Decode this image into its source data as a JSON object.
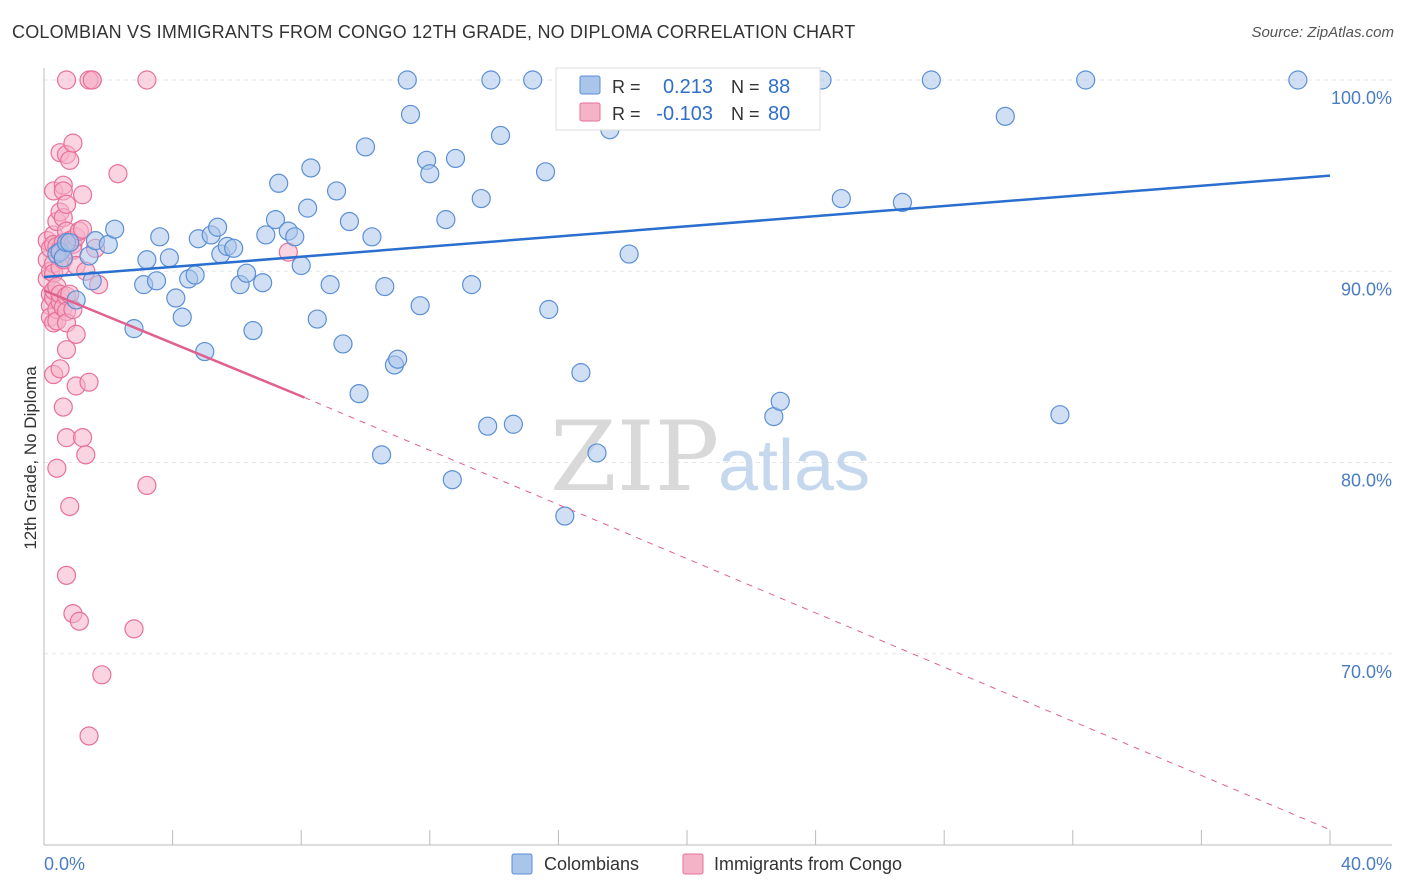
{
  "header": {
    "title": "COLOMBIAN VS IMMIGRANTS FROM CONGO 12TH GRADE, NO DIPLOMA CORRELATION CHART",
    "source": "Source: ZipAtlas.com"
  },
  "watermark": {
    "zip": "ZIP",
    "atlas": "atlas"
  },
  "legend": {
    "r_label": "R =",
    "n_label": "N =",
    "entries": [
      {
        "r": "0.213",
        "n": "88"
      },
      {
        "r": "-0.103",
        "n": "80"
      }
    ]
  },
  "colors": {
    "blue_fill": "#a9c5ea",
    "blue_stroke": "#5b8fd6",
    "blue_line": "#2a6fcf",
    "pink_fill": "#f5b3c8",
    "pink_stroke": "#e8709a",
    "pink_line": "#e0608e"
  },
  "chart_data": {
    "type": "scatter",
    "title": "COLOMBIAN VS IMMIGRANTS FROM CONGO 12TH GRADE, NO DIPLOMA CORRELATION CHART",
    "xlabel": "",
    "ylabel": "12th Grade, No Diploma",
    "xlim": [
      0,
      40
    ],
    "ylim": [
      60,
      101.5
    ],
    "x_tick_labels": [
      "0.0%",
      "40.0%"
    ],
    "y_ticks": [
      100,
      90,
      80,
      70
    ],
    "y_tick_labels": [
      "100.0%",
      "90.0%",
      "80.0%",
      "70.0%"
    ],
    "grid": true,
    "legend_position": "top-center",
    "series": [
      {
        "name": "Colombians",
        "trend": {
          "x": [
            0,
            40
          ],
          "y": [
            89.7,
            95.0
          ]
        },
        "points": [
          [
            0.4,
            90.9
          ],
          [
            0.5,
            91.0
          ],
          [
            0.6,
            90.7
          ],
          [
            0.7,
            91.5
          ],
          [
            0.8,
            91.5
          ],
          [
            1.0,
            88.5
          ],
          [
            1.4,
            90.8
          ],
          [
            1.5,
            89.5
          ],
          [
            1.6,
            91.6
          ],
          [
            2.0,
            91.4
          ],
          [
            2.2,
            92.2
          ],
          [
            2.8,
            87.0
          ],
          [
            3.1,
            89.3
          ],
          [
            3.2,
            90.6
          ],
          [
            3.5,
            89.5
          ],
          [
            3.6,
            91.8
          ],
          [
            3.9,
            90.7
          ],
          [
            4.1,
            88.6
          ],
          [
            4.3,
            87.6
          ],
          [
            4.5,
            89.6
          ],
          [
            4.7,
            89.8
          ],
          [
            4.8,
            91.7
          ],
          [
            5.0,
            85.8
          ],
          [
            5.2,
            91.9
          ],
          [
            5.4,
            92.3
          ],
          [
            5.5,
            90.9
          ],
          [
            5.7,
            91.3
          ],
          [
            5.9,
            91.2
          ],
          [
            6.1,
            89.3
          ],
          [
            6.3,
            89.9
          ],
          [
            6.5,
            86.9
          ],
          [
            6.8,
            89.4
          ],
          [
            6.9,
            91.9
          ],
          [
            7.2,
            92.7
          ],
          [
            7.3,
            94.6
          ],
          [
            7.6,
            92.1
          ],
          [
            7.8,
            91.8
          ],
          [
            8.0,
            90.3
          ],
          [
            8.2,
            93.3
          ],
          [
            8.3,
            95.4
          ],
          [
            8.5,
            87.5
          ],
          [
            8.9,
            89.3
          ],
          [
            9.1,
            94.2
          ],
          [
            9.3,
            86.2
          ],
          [
            9.5,
            92.6
          ],
          [
            9.8,
            83.6
          ],
          [
            10.0,
            96.5
          ],
          [
            10.2,
            91.8
          ],
          [
            10.5,
            80.4
          ],
          [
            10.6,
            89.2
          ],
          [
            10.9,
            85.1
          ],
          [
            11.0,
            85.4
          ],
          [
            11.3,
            100
          ],
          [
            11.4,
            98.2
          ],
          [
            11.7,
            88.2
          ],
          [
            11.9,
            95.8
          ],
          [
            12.0,
            95.1
          ],
          [
            12.5,
            92.7
          ],
          [
            12.7,
            79.1
          ],
          [
            12.8,
            95.9
          ],
          [
            13.3,
            89.3
          ],
          [
            13.6,
            93.8
          ],
          [
            13.8,
            81.9
          ],
          [
            13.9,
            100
          ],
          [
            14.2,
            97.1
          ],
          [
            14.6,
            82.0
          ],
          [
            15.2,
            100
          ],
          [
            15.6,
            95.2
          ],
          [
            15.7,
            88.0
          ],
          [
            16.2,
            77.2
          ],
          [
            16.7,
            84.7
          ],
          [
            16.9,
            98.8
          ],
          [
            17.2,
            80.5
          ],
          [
            17.5,
            99.9
          ],
          [
            17.6,
            97.4
          ],
          [
            18.0,
            99.1
          ],
          [
            18.2,
            90.9
          ],
          [
            22.7,
            82.4
          ],
          [
            22.9,
            83.2
          ],
          [
            24.2,
            100
          ],
          [
            24.8,
            93.8
          ],
          [
            26.7,
            93.6
          ],
          [
            27.6,
            100
          ],
          [
            29.9,
            98.1
          ],
          [
            31.6,
            82.5
          ],
          [
            32.4,
            100
          ],
          [
            39.0,
            100
          ]
        ]
      },
      {
        "name": "Immigrants from Congo",
        "trend_solid": {
          "x": [
            0,
            8.1
          ],
          "y": [
            89.0,
            83.4
          ]
        },
        "trend_dashed": {
          "x": [
            8.1,
            40
          ],
          "y": [
            83.4,
            60.8
          ]
        },
        "points": [
          [
            0.1,
            91.6
          ],
          [
            0.1,
            90.6
          ],
          [
            0.1,
            89.6
          ],
          [
            0.2,
            88.8
          ],
          [
            0.2,
            88.2
          ],
          [
            0.2,
            87.6
          ],
          [
            0.2,
            91.2
          ],
          [
            0.2,
            90.0
          ],
          [
            0.3,
            94.2
          ],
          [
            0.3,
            91.9
          ],
          [
            0.3,
            88.6
          ],
          [
            0.3,
            87.3
          ],
          [
            0.3,
            91.4
          ],
          [
            0.3,
            90.4
          ],
          [
            0.3,
            89.0
          ],
          [
            0.3,
            84.6
          ],
          [
            0.3,
            89.9
          ],
          [
            0.4,
            92.6
          ],
          [
            0.4,
            91.3
          ],
          [
            0.4,
            88.0
          ],
          [
            0.4,
            87.4
          ],
          [
            0.4,
            79.7
          ],
          [
            0.4,
            89.2
          ],
          [
            0.5,
            96.2
          ],
          [
            0.5,
            93.1
          ],
          [
            0.5,
            91.1
          ],
          [
            0.5,
            90.2
          ],
          [
            0.5,
            88.4
          ],
          [
            0.5,
            88.8
          ],
          [
            0.5,
            84.9
          ],
          [
            0.6,
            94.5
          ],
          [
            0.6,
            92.8
          ],
          [
            0.6,
            91.5
          ],
          [
            0.6,
            90.6
          ],
          [
            0.6,
            88.1
          ],
          [
            0.6,
            82.9
          ],
          [
            0.6,
            94.2
          ],
          [
            0.7,
            96.1
          ],
          [
            0.7,
            93.5
          ],
          [
            0.7,
            92.1
          ],
          [
            0.7,
            91.3
          ],
          [
            0.7,
            88.7
          ],
          [
            0.7,
            87.9
          ],
          [
            0.7,
            87.3
          ],
          [
            0.7,
            85.9
          ],
          [
            0.7,
            81.3
          ],
          [
            0.7,
            74.1
          ],
          [
            0.8,
            95.8
          ],
          [
            0.8,
            91.6
          ],
          [
            0.8,
            88.8
          ],
          [
            0.8,
            77.7
          ],
          [
            0.9,
            96.7
          ],
          [
            0.9,
            91.4
          ],
          [
            0.9,
            88.0
          ],
          [
            0.9,
            72.1
          ],
          [
            0.9,
            91.1
          ],
          [
            1.0,
            91.8
          ],
          [
            1.0,
            90.3
          ],
          [
            1.0,
            86.7
          ],
          [
            1.0,
            84.0
          ],
          [
            1.1,
            92.1
          ],
          [
            1.1,
            71.7
          ],
          [
            1.2,
            92.2
          ],
          [
            1.2,
            94.0
          ],
          [
            1.2,
            81.3
          ],
          [
            1.3,
            90.0
          ],
          [
            1.3,
            80.4
          ],
          [
            1.4,
            84.2
          ],
          [
            1.4,
            65.7
          ],
          [
            1.5,
            100
          ],
          [
            1.6,
            91.2
          ],
          [
            1.7,
            89.3
          ],
          [
            1.8,
            68.9
          ],
          [
            2.3,
            95.1
          ],
          [
            2.8,
            71.3
          ],
          [
            3.2,
            78.8
          ],
          [
            0.7,
            100
          ],
          [
            1.4,
            100
          ],
          [
            1.5,
            100
          ],
          [
            3.2,
            100
          ],
          [
            7.6,
            91.0
          ]
        ]
      }
    ]
  },
  "bottom_legend": [
    "Colombians",
    "Immigrants from Congo"
  ]
}
